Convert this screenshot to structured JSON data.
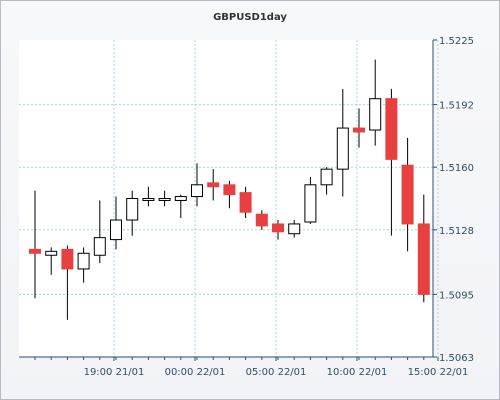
{
  "chart_data": {
    "type": "candlestick",
    "title": "GBPUSD1day",
    "xlabel": "",
    "ylabel": "",
    "ylim": [
      1.5063,
      1.5225
    ],
    "yticks": [
      "1.5225",
      "1.5192",
      "1.5160",
      "1.5128",
      "1.5095",
      "1.5063"
    ],
    "xticks": [
      "19:00 21/01",
      "00:00 22/01",
      "05:00 22/01",
      "10:00 22/01",
      "15:00 22/01"
    ],
    "xtick_index": [
      5,
      10,
      15,
      20,
      25
    ],
    "grid": true,
    "up_color": "#ffffff",
    "down_color": "#e84040",
    "candles": [
      {
        "o": 1.5118,
        "h": 1.5148,
        "l": 1.5093,
        "c": 1.5116
      },
      {
        "o": 1.5115,
        "h": 1.5119,
        "l": 1.5105,
        "c": 1.5117
      },
      {
        "o": 1.5118,
        "h": 1.512,
        "l": 1.5082,
        "c": 1.5108
      },
      {
        "o": 1.5108,
        "h": 1.5119,
        "l": 1.5101,
        "c": 1.5116
      },
      {
        "o": 1.5115,
        "h": 1.5143,
        "l": 1.5111,
        "c": 1.5124
      },
      {
        "o": 1.5123,
        "h": 1.5145,
        "l": 1.5118,
        "c": 1.5133
      },
      {
        "o": 1.5133,
        "h": 1.5148,
        "l": 1.5125,
        "c": 1.5144
      },
      {
        "o": 1.5143,
        "h": 1.515,
        "l": 1.514,
        "c": 1.5144
      },
      {
        "o": 1.5143,
        "h": 1.5148,
        "l": 1.514,
        "c": 1.5144
      },
      {
        "o": 1.5143,
        "h": 1.5146,
        "l": 1.5134,
        "c": 1.5145
      },
      {
        "o": 1.5145,
        "h": 1.5162,
        "l": 1.514,
        "c": 1.5151
      },
      {
        "o": 1.5152,
        "h": 1.5159,
        "l": 1.5143,
        "c": 1.515
      },
      {
        "o": 1.5151,
        "h": 1.5153,
        "l": 1.5139,
        "c": 1.5146
      },
      {
        "o": 1.5147,
        "h": 1.515,
        "l": 1.5134,
        "c": 1.5137
      },
      {
        "o": 1.5136,
        "h": 1.5138,
        "l": 1.5128,
        "c": 1.513
      },
      {
        "o": 1.5131,
        "h": 1.5133,
        "l": 1.5123,
        "c": 1.5127
      },
      {
        "o": 1.5126,
        "h": 1.5133,
        "l": 1.5124,
        "c": 1.5131
      },
      {
        "o": 1.5132,
        "h": 1.5155,
        "l": 1.5131,
        "c": 1.5151
      },
      {
        "o": 1.5151,
        "h": 1.516,
        "l": 1.5146,
        "c": 1.5159
      },
      {
        "o": 1.5159,
        "h": 1.52,
        "l": 1.5145,
        "c": 1.518
      },
      {
        "o": 1.518,
        "h": 1.519,
        "l": 1.517,
        "c": 1.5178
      },
      {
        "o": 1.5179,
        "h": 1.5215,
        "l": 1.5171,
        "c": 1.5195
      },
      {
        "o": 1.5195,
        "h": 1.52,
        "l": 1.5125,
        "c": 1.5164
      },
      {
        "o": 1.5161,
        "h": 1.5175,
        "l": 1.5117,
        "c": 1.5131
      },
      {
        "o": 1.5131,
        "h": 1.5146,
        "l": 1.5091,
        "c": 1.5095
      }
    ]
  }
}
